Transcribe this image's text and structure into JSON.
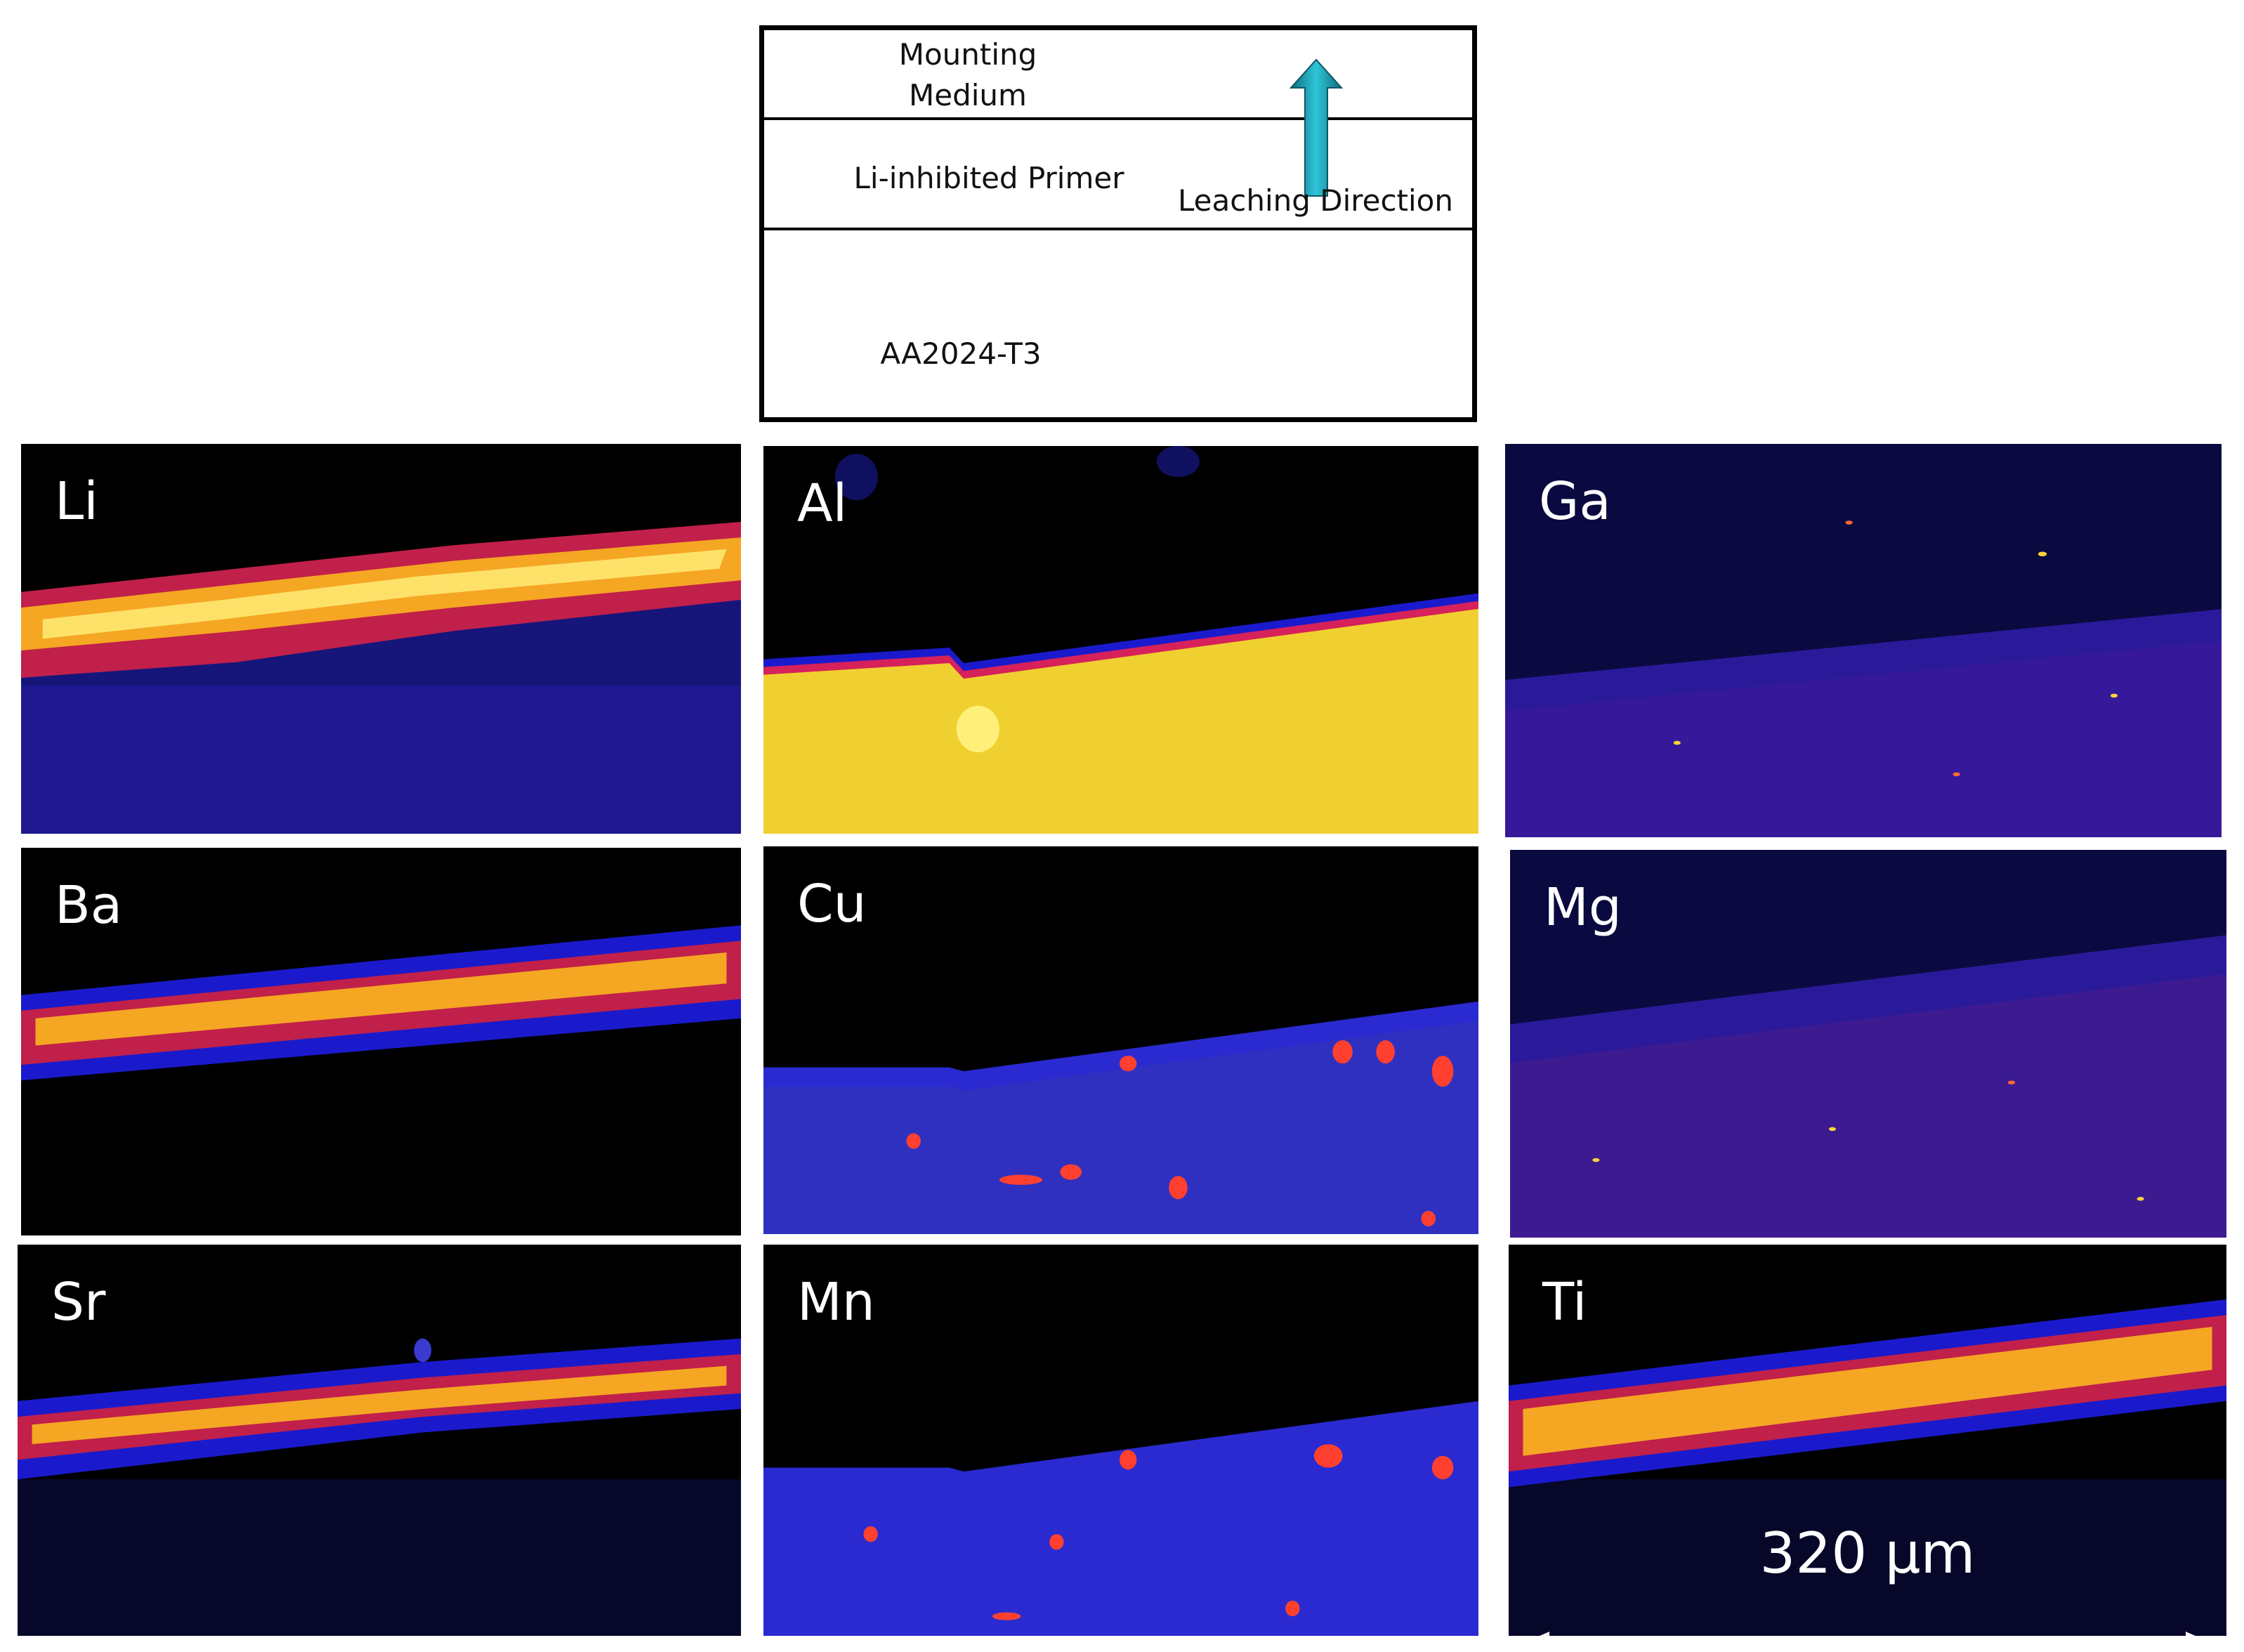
{
  "schematic": {
    "layers": {
      "mounting_medium": "Mounting\nMedium",
      "primer": "Li-inhibited Primer",
      "substrate": "AA2024-T3"
    },
    "arrow_label": "Leaching Direction",
    "arrow_color": "#1aa3b8"
  },
  "panels": [
    {
      "id": "li",
      "label": "Li"
    },
    {
      "id": "al",
      "label": "Al"
    },
    {
      "id": "ga",
      "label": "Ga"
    },
    {
      "id": "ba",
      "label": "Ba"
    },
    {
      "id": "cu",
      "label": "Cu"
    },
    {
      "id": "mg",
      "label": "Mg"
    },
    {
      "id": "sr",
      "label": "Sr"
    },
    {
      "id": "mn",
      "label": "Mn"
    },
    {
      "id": "ti",
      "label": "Ti"
    }
  ],
  "scale_bar": {
    "label": "320 µm"
  },
  "colors": {
    "background": "#000000",
    "low": "#1a1acc",
    "mid": "#d6215a",
    "high": "#ffd23a",
    "saturated": "#fff07a"
  }
}
